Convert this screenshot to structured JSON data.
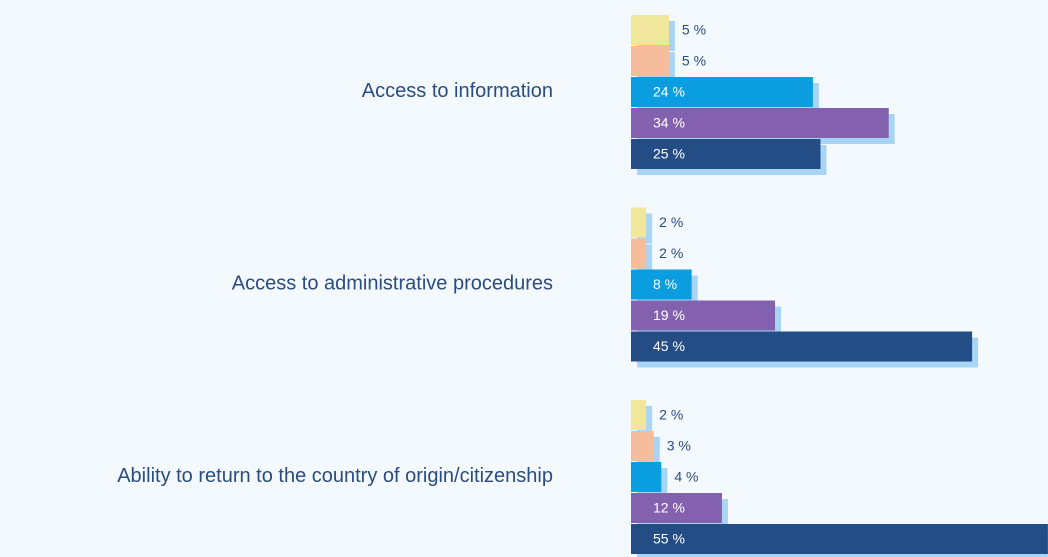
{
  "chart_data": {
    "type": "bar",
    "orientation": "horizontal",
    "categories": [
      "Access to information",
      "Access to administrative procedures",
      "Ability to return to the country of origin/citizenship"
    ],
    "series": [
      {
        "color": "#f1e79c",
        "values": [
          5,
          2,
          2
        ],
        "value_labels": [
          "5 %",
          "2 %",
          "2 %"
        ]
      },
      {
        "color": "#f5bd9c",
        "values": [
          5,
          2,
          3
        ],
        "value_labels": [
          "5 %",
          "2 %",
          "3 %"
        ]
      },
      {
        "color": "#0a9ee0",
        "values": [
          24,
          8,
          4
        ],
        "value_labels": [
          "24 %",
          "8 %",
          "4 %"
        ]
      },
      {
        "color": "#8461ae",
        "values": [
          34,
          19,
          12
        ],
        "value_labels": [
          "34 %",
          "19 %",
          "12 %"
        ]
      },
      {
        "color": "#244d86",
        "values": [
          25,
          45,
          55
        ],
        "value_labels": [
          "25 %",
          "45 %",
          "55 %"
        ]
      }
    ]
  }
}
